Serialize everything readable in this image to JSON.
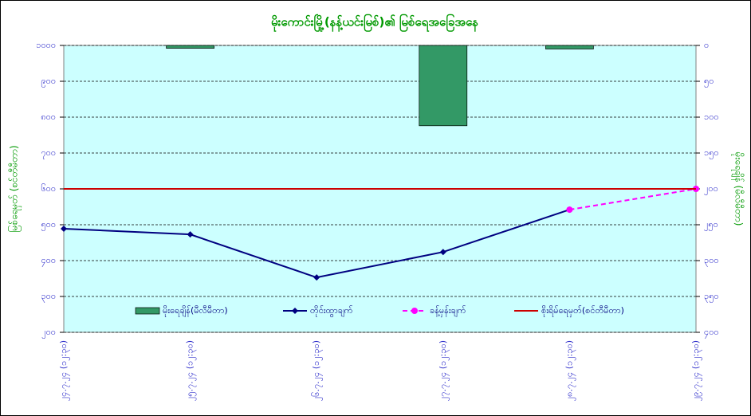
{
  "chart_data": {
    "type": "combo",
    "title": "မိုးကောင်းမြို့(နန့်ယင်းမြစ်)၏ မြစ်ရေအခြေအနေ",
    "ylabel": "မြစ်ရေမှတ် (စင်တီမီတာ)",
    "y2label": "မိုးရေချိန် (မီလီမီတာ)",
    "categories": [
      "၂၄.၇.၂၄ (၁၂:၃၀)",
      "၂၅.၇.၂၄ (၁၂:၃၀)",
      "၂၆.၇.၂၄ (၁၂:၃၀)",
      "၂၇.၇.၂၄ (၁၂:၃၀)",
      "၂၈.၇.၂၄ (၁၂:၃၀)",
      "၂၉.၇.၂၄ (၁၂:၃၀)"
    ],
    "series": [
      {
        "name": "မိုးရေချိန်(မီလီမီတာ)",
        "type": "bar",
        "axis": "y2",
        "color": "#339966",
        "values": [
          null,
          4,
          null,
          112,
          5,
          null
        ]
      },
      {
        "name": "တိုင်းထွာချက်",
        "type": "line",
        "color": "#000080",
        "marker": "diamond",
        "values": [
          489,
          473,
          353,
          424,
          542,
          null
        ]
      },
      {
        "name": "ခန့်မှန်းချက်",
        "type": "line",
        "color": "#ff00ff",
        "marker": "circle",
        "dashed": true,
        "values": [
          null,
          null,
          null,
          null,
          542,
          600
        ]
      },
      {
        "name": "စိုးရိမ်ရေမှတ်(စင်တီမီတာ)",
        "type": "line",
        "color": "#cc0000",
        "values": [
          600,
          600,
          600,
          600,
          600,
          600
        ]
      }
    ],
    "ylim": [
      200,
      1000
    ],
    "yticks": [
      {
        "value": 200,
        "label": "၂၀၀"
      },
      {
        "value": 300,
        "label": "၃၀၀"
      },
      {
        "value": 400,
        "label": "၄၀၀"
      },
      {
        "value": 500,
        "label": "၅၀၀"
      },
      {
        "value": 600,
        "label": "၆၀၀"
      },
      {
        "value": 700,
        "label": "၇၀၀"
      },
      {
        "value": 800,
        "label": "၈၀၀"
      },
      {
        "value": 900,
        "label": "၉၀၀"
      },
      {
        "value": 1000,
        "label": "၁၀၀၀"
      }
    ],
    "y2lim": [
      0,
      400
    ],
    "y2_inverted": true,
    "y2ticks": [
      {
        "value": 0,
        "label": "၀"
      },
      {
        "value": 50,
        "label": "၅၀"
      },
      {
        "value": 100,
        "label": "၁၀၀"
      },
      {
        "value": 150,
        "label": "၁၅၀"
      },
      {
        "value": 200,
        "label": "၂၀၀"
      },
      {
        "value": 250,
        "label": "၂၅၀"
      },
      {
        "value": 300,
        "label": "၃၀၀"
      },
      {
        "value": 350,
        "label": "၃၅၀"
      },
      {
        "value": 400,
        "label": "၄၀၀"
      }
    ],
    "grid": true
  }
}
